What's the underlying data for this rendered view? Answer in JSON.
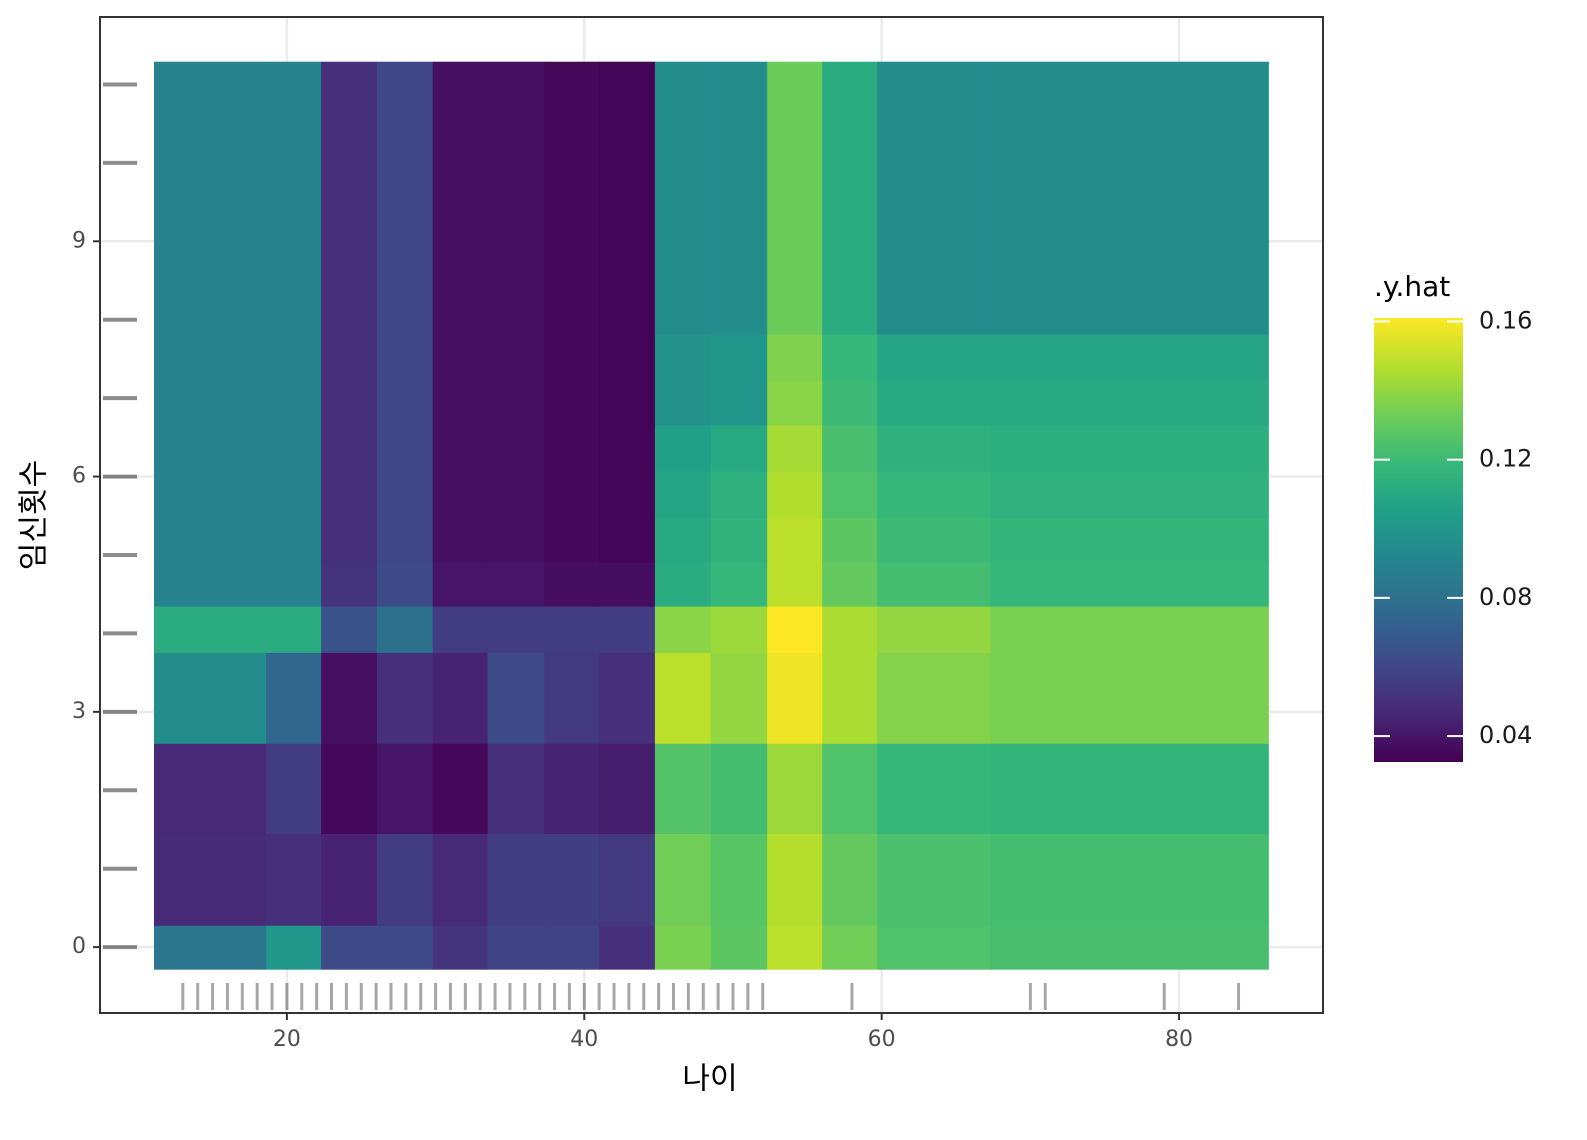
{
  "chart_data": {
    "type": "heatmap",
    "x_label": "나이",
    "y_label": "임신횟수",
    "legend_title": ".y.hat",
    "xlim": [
      7.43,
      89.68
    ],
    "ylim": [
      -0.84,
      11.86
    ],
    "xticks": [
      20,
      40,
      60,
      80
    ],
    "yticks": [
      0,
      3,
      6,
      9
    ],
    "grid": true,
    "colormap": "viridis",
    "clim": [
      0.0325,
      0.161
    ],
    "cticks": [
      0.04,
      0.08,
      0.12,
      0.16
    ],
    "x_edges": [
      11.06,
      18.6,
      22.3,
      26.05,
      29.8,
      33.5,
      37.3,
      41.0,
      44.75,
      48.5,
      52.3,
      56.0,
      59.7,
      67.3,
      86.0
    ],
    "y_edges": [
      -0.28,
      0.28,
      1.45,
      2.6,
      3.76,
      4.35,
      4.91,
      5.48,
      6.07,
      6.66,
      7.23,
      7.82,
      11.29
    ],
    "z": [
      [
        0.083,
        0.1,
        0.062,
        0.062,
        0.052,
        0.058,
        0.058,
        0.05,
        0.135,
        0.128,
        0.148,
        0.133,
        0.125,
        0.123
      ],
      [
        0.048,
        0.05,
        0.045,
        0.055,
        0.048,
        0.056,
        0.056,
        0.054,
        0.133,
        0.127,
        0.147,
        0.13,
        0.124,
        0.122
      ],
      [
        0.047,
        0.055,
        0.035,
        0.04,
        0.035,
        0.05,
        0.045,
        0.043,
        0.126,
        0.122,
        0.142,
        0.125,
        0.118,
        0.117
      ],
      [
        0.095,
        0.075,
        0.038,
        0.05,
        0.045,
        0.062,
        0.054,
        0.05,
        0.148,
        0.14,
        0.158,
        0.145,
        0.137,
        0.135
      ],
      [
        0.112,
        0.112,
        0.065,
        0.08,
        0.055,
        0.055,
        0.055,
        0.055,
        0.138,
        0.142,
        0.161,
        0.145,
        0.14,
        0.135
      ],
      [
        0.09,
        0.09,
        0.052,
        0.062,
        0.04,
        0.04,
        0.037,
        0.037,
        0.112,
        0.118,
        0.148,
        0.13,
        0.122,
        0.118
      ],
      [
        0.09,
        0.09,
        0.05,
        0.06,
        0.038,
        0.038,
        0.035,
        0.034,
        0.11,
        0.116,
        0.148,
        0.128,
        0.12,
        0.117
      ],
      [
        0.09,
        0.09,
        0.05,
        0.06,
        0.038,
        0.038,
        0.035,
        0.034,
        0.108,
        0.114,
        0.146,
        0.125,
        0.118,
        0.115
      ],
      [
        0.09,
        0.09,
        0.05,
        0.06,
        0.038,
        0.038,
        0.035,
        0.034,
        0.105,
        0.11,
        0.144,
        0.123,
        0.114,
        0.113
      ],
      [
        0.09,
        0.09,
        0.05,
        0.06,
        0.038,
        0.038,
        0.035,
        0.034,
        0.098,
        0.1,
        0.138,
        0.12,
        0.11,
        0.11
      ],
      [
        0.09,
        0.09,
        0.05,
        0.06,
        0.038,
        0.038,
        0.035,
        0.034,
        0.098,
        0.1,
        0.136,
        0.118,
        0.108,
        0.108
      ],
      [
        0.09,
        0.09,
        0.05,
        0.06,
        0.038,
        0.038,
        0.035,
        0.034,
        0.095,
        0.095,
        0.132,
        0.112,
        0.095,
        0.095
      ]
    ],
    "x_rug": [
      13,
      14,
      15,
      16,
      17,
      18,
      19,
      20,
      21,
      22,
      23,
      24,
      25,
      26,
      27,
      28,
      29,
      30,
      31,
      32,
      33,
      34,
      35,
      36,
      37,
      38,
      39,
      40,
      41,
      42,
      43,
      44,
      45,
      46,
      47,
      48,
      49,
      50,
      51,
      52,
      58,
      70,
      71,
      79,
      84
    ],
    "y_rug": [
      0,
      1,
      2,
      3,
      4,
      5,
      6,
      7,
      8,
      10,
      11
    ]
  }
}
